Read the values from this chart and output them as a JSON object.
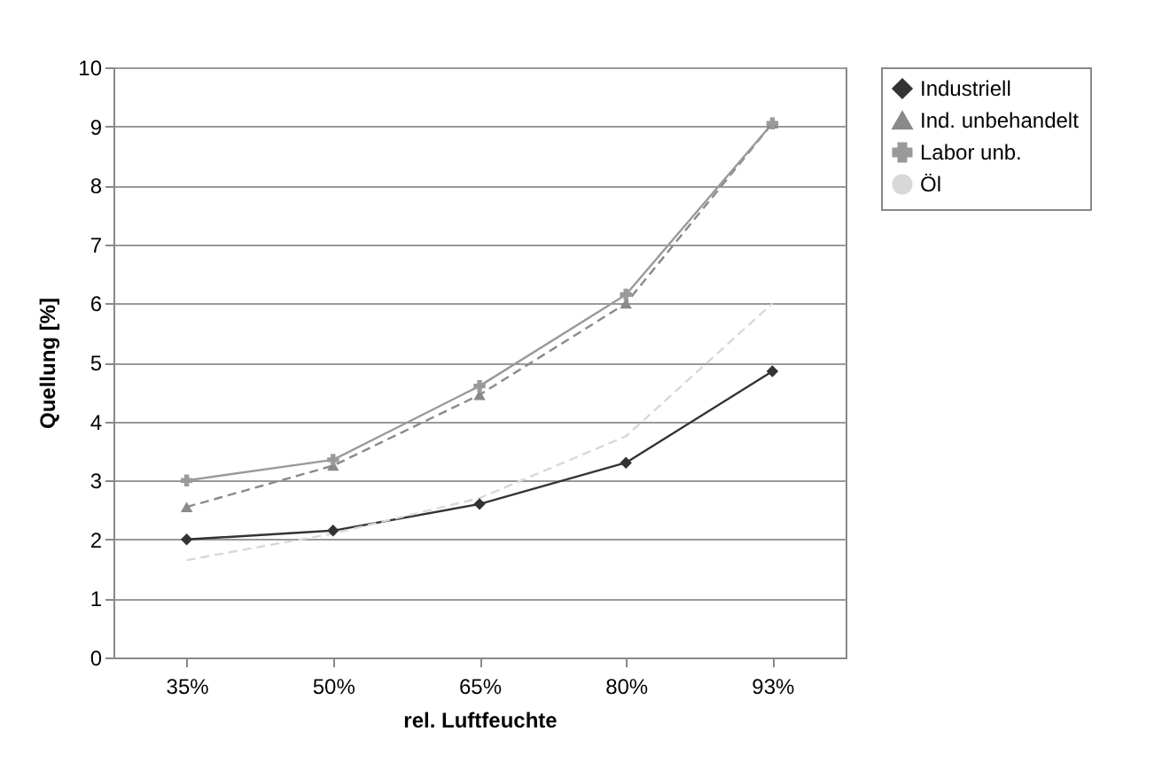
{
  "chart_data": {
    "type": "line",
    "xlabel": "rel. Luftfeuchte",
    "ylabel": "Quellung [%]",
    "categories": [
      "35%",
      "50%",
      "65%",
      "80%",
      "93%"
    ],
    "series": [
      {
        "name": "Industriell",
        "color": "#333333",
        "marker": "diamond",
        "line_style": "solid",
        "values": [
          2.0,
          2.15,
          2.6,
          3.3,
          4.85
        ]
      },
      {
        "name": "Ind. unbehandelt",
        "color": "#8a8a8a",
        "marker": "triangle",
        "line_style": "dashed",
        "values": [
          2.55,
          3.25,
          4.45,
          6.0,
          9.05
        ]
      },
      {
        "name": "Labor unb.",
        "color": "#9a9a9a",
        "marker": "cross",
        "line_style": "solid",
        "values": [
          3.0,
          3.35,
          4.6,
          6.15,
          9.05
        ]
      },
      {
        "name": "Öl",
        "color": "#d8d8d8",
        "marker": "none",
        "line_style": "dashed",
        "values": [
          1.65,
          2.1,
          2.7,
          3.75,
          6.0
        ]
      }
    ],
    "ylim": [
      0,
      10
    ],
    "yticks": [
      0,
      1,
      2,
      3,
      4,
      5,
      6,
      7,
      8,
      9,
      10
    ],
    "grid": "y",
    "legend": "right"
  }
}
